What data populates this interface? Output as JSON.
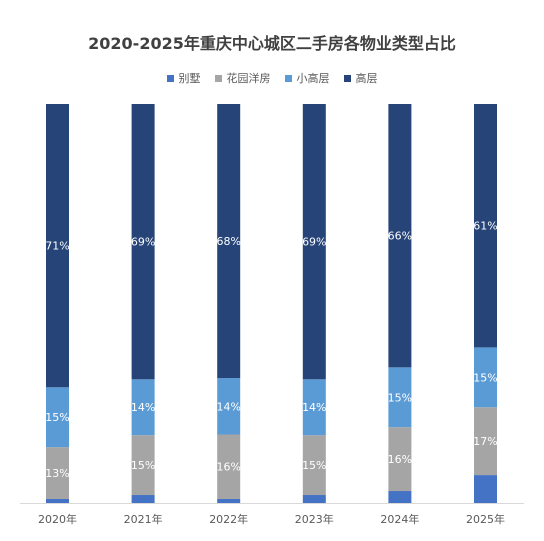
{
  "chart_data": {
    "type": "bar",
    "stacked": true,
    "title": "2020-2025年重庆中心城区二手房各物业类型占比",
    "categories": [
      "2020年",
      "2021年",
      "2022年",
      "2023年",
      "2024年",
      "2025年"
    ],
    "ylim": [
      0,
      100
    ],
    "legend_position": "top",
    "grid": false,
    "series": [
      {
        "name": "别墅",
        "color": "#4472c4",
        "values": [
          1,
          2,
          1,
          2,
          3,
          7
        ],
        "labels": [
          "",
          "",
          "",
          "",
          "",
          ""
        ]
      },
      {
        "name": "花园洋房",
        "color": "#a5a5a5",
        "values": [
          13,
          15,
          16,
          15,
          16,
          17
        ],
        "labels": [
          "13%",
          "15%",
          "16%",
          "15%",
          "16%",
          "17%"
        ]
      },
      {
        "name": "小高层",
        "color": "#5b9bd5",
        "values": [
          15,
          14,
          14,
          14,
          15,
          15
        ],
        "labels": [
          "15%",
          "14%",
          "14%",
          "14%",
          "15%",
          "15%"
        ]
      },
      {
        "name": "高层",
        "color": "#264478",
        "values": [
          71,
          69,
          68,
          69,
          66,
          61
        ],
        "labels": [
          "71%",
          "69%",
          "68%",
          "69%",
          "66%",
          "61%"
        ]
      }
    ]
  }
}
